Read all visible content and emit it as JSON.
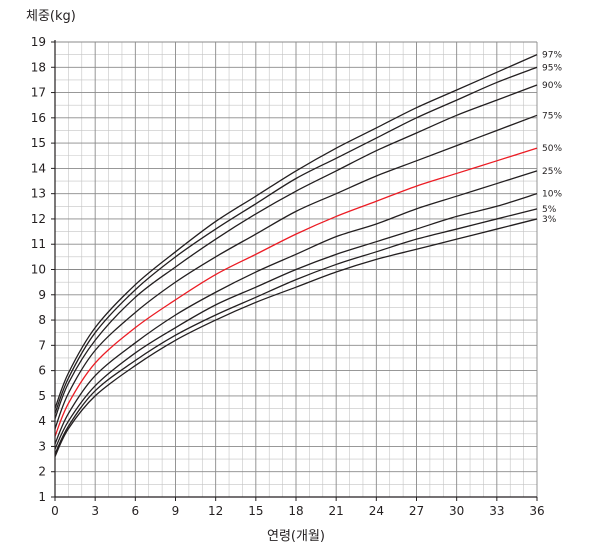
{
  "chart_data": {
    "type": "line",
    "ylabel": "체중(kg)",
    "xlabel": "연령(개월)",
    "xlim": [
      0,
      36
    ],
    "ylim": [
      1,
      19
    ],
    "xticks": [
      0,
      3,
      6,
      9,
      12,
      15,
      18,
      21,
      24,
      27,
      30,
      33,
      36
    ],
    "yticks": [
      1,
      2,
      3,
      4,
      5,
      6,
      7,
      8,
      9,
      10,
      11,
      12,
      13,
      14,
      15,
      16,
      17,
      18,
      19
    ],
    "grid": true,
    "x": [
      0,
      1,
      3,
      6,
      9,
      12,
      15,
      18,
      21,
      24,
      27,
      30,
      33,
      36
    ],
    "series": [
      {
        "name": "97%",
        "color": "#231f20",
        "values": [
          4.5,
          5.9,
          7.7,
          9.4,
          10.7,
          11.9,
          12.9,
          13.9,
          14.8,
          15.6,
          16.4,
          17.1,
          17.8,
          18.5
        ]
      },
      {
        "name": "95%",
        "color": "#231f20",
        "values": [
          4.3,
          5.7,
          7.5,
          9.2,
          10.5,
          11.6,
          12.6,
          13.6,
          14.4,
          15.2,
          16.0,
          16.7,
          17.4,
          18.0
        ]
      },
      {
        "name": "90%",
        "color": "#231f20",
        "values": [
          4.1,
          5.5,
          7.2,
          8.9,
          10.1,
          11.2,
          12.2,
          13.1,
          13.9,
          14.7,
          15.4,
          16.1,
          16.7,
          17.3
        ]
      },
      {
        "name": "75%",
        "color": "#231f20",
        "values": [
          3.7,
          5.1,
          6.8,
          8.3,
          9.5,
          10.5,
          11.4,
          12.3,
          13.0,
          13.7,
          14.3,
          14.9,
          15.5,
          16.1
        ]
      },
      {
        "name": "50%",
        "color": "#ec1c24",
        "values": [
          3.4,
          4.7,
          6.3,
          7.7,
          8.8,
          9.8,
          10.6,
          11.4,
          12.1,
          12.7,
          13.3,
          13.8,
          14.3,
          14.8
        ]
      },
      {
        "name": "25%",
        "color": "#231f20",
        "values": [
          3.1,
          4.3,
          5.8,
          7.1,
          8.2,
          9.1,
          9.9,
          10.6,
          11.3,
          11.8,
          12.4,
          12.9,
          13.4,
          13.9
        ]
      },
      {
        "name": "10%",
        "color": "#231f20",
        "values": [
          2.9,
          4.0,
          5.4,
          6.7,
          7.7,
          8.6,
          9.3,
          10.0,
          10.6,
          11.1,
          11.6,
          12.1,
          12.5,
          13.0
        ]
      },
      {
        "name": "5%",
        "color": "#231f20",
        "values": [
          2.7,
          3.8,
          5.2,
          6.4,
          7.4,
          8.2,
          8.9,
          9.6,
          10.2,
          10.7,
          11.2,
          11.6,
          12.0,
          12.4
        ]
      },
      {
        "name": "3%",
        "color": "#231f20",
        "values": [
          2.6,
          3.7,
          5.0,
          6.2,
          7.2,
          8.0,
          8.7,
          9.3,
          9.9,
          10.4,
          10.8,
          11.2,
          11.6,
          12.0
        ]
      }
    ]
  }
}
